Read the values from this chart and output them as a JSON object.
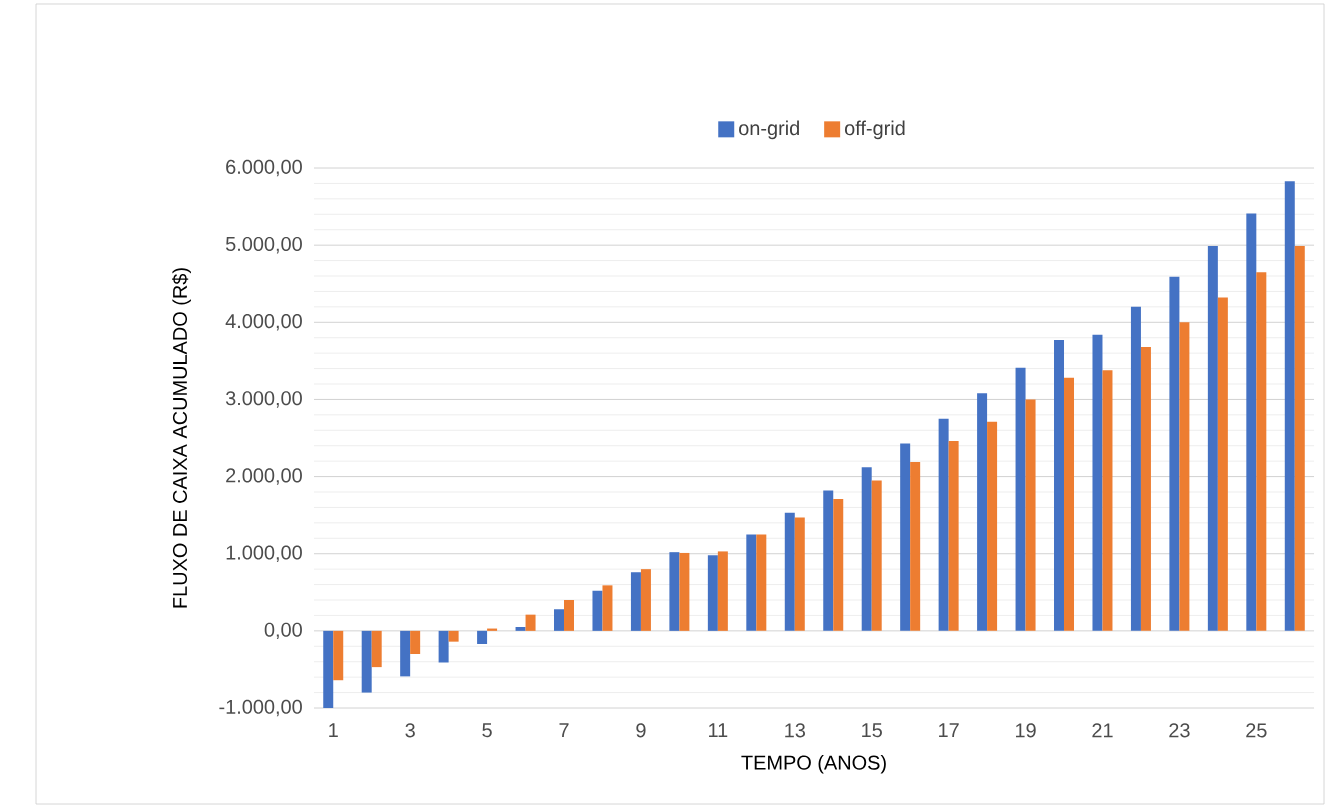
{
  "chart_data": {
    "type": "bar",
    "xlabel": "TEMPO (ANOS)",
    "ylabel": "FLUXO DE CAIXA ACUMULADO (R$)",
    "categories": [
      "1",
      null,
      "3",
      null,
      "5",
      null,
      "7",
      null,
      "9",
      null,
      "11",
      null,
      "13",
      null,
      "15",
      null,
      "17",
      null,
      "19",
      null,
      "21",
      null,
      "23",
      null,
      "25",
      null
    ],
    "series": [
      {
        "name": "on-grid",
        "color": "#4472c4",
        "values": [
          -1000,
          -800,
          -590,
          -410,
          -170,
          50,
          280,
          520,
          760,
          1020,
          980,
          1250,
          1530,
          1820,
          2120,
          2430,
          2750,
          3080,
          3410,
          3770,
          3840,
          4200,
          4590,
          4990,
          5410,
          5830
        ]
      },
      {
        "name": "off-grid",
        "color": "#ed7d31",
        "values": [
          -640,
          -470,
          -300,
          -140,
          30,
          210,
          400,
          590,
          800,
          1010,
          1030,
          1250,
          1470,
          1710,
          1950,
          2190,
          2460,
          2710,
          3000,
          3280,
          3380,
          3680,
          4000,
          4320,
          4650,
          4990
        ]
      }
    ],
    "ylim": [
      -1000,
      6000
    ],
    "yticks": [
      {
        "value": -1000,
        "label": "-1.000,00"
      },
      {
        "value": 0,
        "label": "0,00"
      },
      {
        "value": 1000,
        "label": "1.000,00"
      },
      {
        "value": 2000,
        "label": "2.000,00"
      },
      {
        "value": 3000,
        "label": "3.000,00"
      },
      {
        "value": 4000,
        "label": "4.000,00"
      },
      {
        "value": 5000,
        "label": "5.000,00"
      },
      {
        "value": 6000,
        "label": "6.000,00"
      }
    ],
    "grid": "y",
    "legend": "top"
  }
}
